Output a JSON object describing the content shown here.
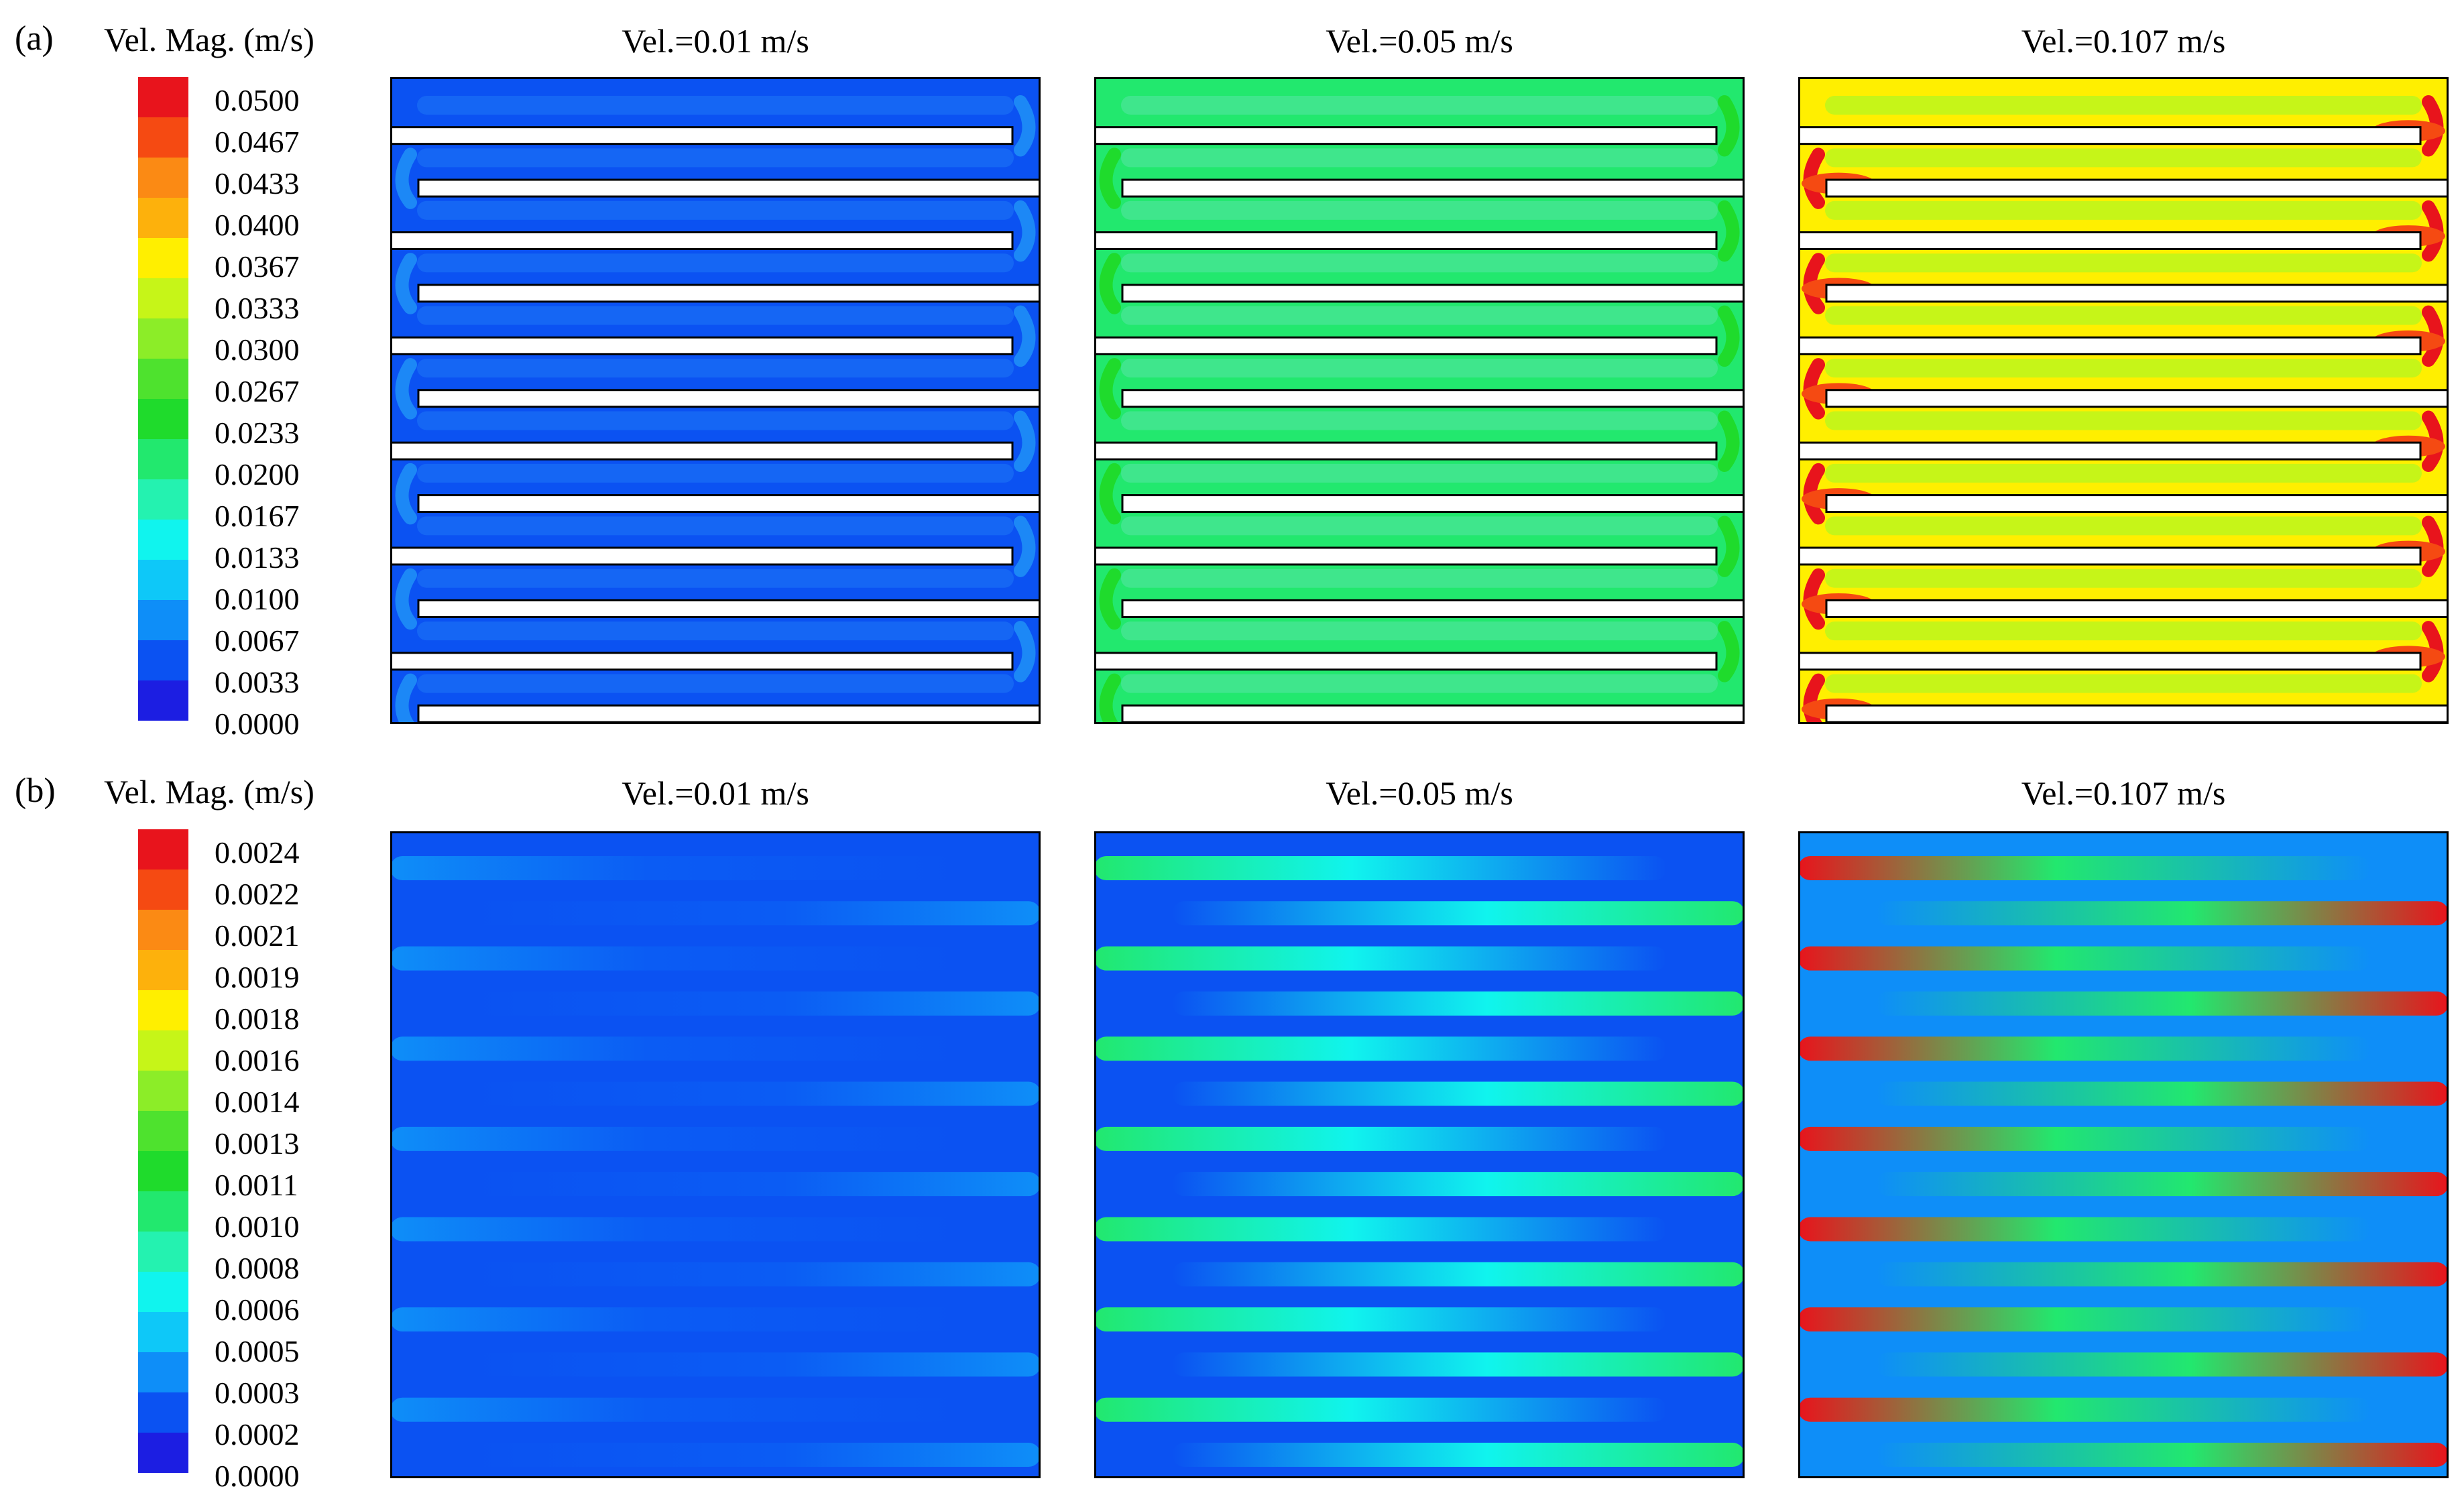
{
  "figure": {
    "panels": [
      {
        "label": "(a)",
        "legend_title": "Vel. Mag. (m/s)",
        "ticks": [
          "0.0500",
          "0.0467",
          "0.0433",
          "0.0400",
          "0.0367",
          "0.0333",
          "0.0300",
          "0.0267",
          "0.0233",
          "0.0200",
          "0.0167",
          "0.0133",
          "0.0100",
          "0.0067",
          "0.0033",
          "0.0000"
        ],
        "columns": [
          "Vel.=0.01 m/s",
          "Vel.=0.05 m/s",
          "Vel.=0.107 m/s"
        ]
      },
      {
        "label": "(b)",
        "legend_title": "Vel. Mag. (m/s)",
        "ticks": [
          "0.0024",
          "0.0022",
          "0.0021",
          "0.0019",
          "0.0018",
          "0.0016",
          "0.0014",
          "0.0013",
          "0.0011",
          "0.0010",
          "0.0008",
          "0.0006",
          "0.0005",
          "0.0003",
          "0.0002",
          "0.0000"
        ],
        "columns": [
          "Vel.=0.01 m/s",
          "Vel.=0.05 m/s",
          "Vel.=0.107 m/s"
        ]
      }
    ],
    "colormap": [
      "#e8141c",
      "#f54a12",
      "#fb8a14",
      "#fdb10c",
      "#ffef00",
      "#c6f518",
      "#8ced28",
      "#4ee22e",
      "#1fdb2c",
      "#22e86e",
      "#24f2b0",
      "#10f4ee",
      "#0ec8f8",
      "#0e8ef8",
      "#0b52f2",
      "#1c1ee2"
    ]
  }
}
